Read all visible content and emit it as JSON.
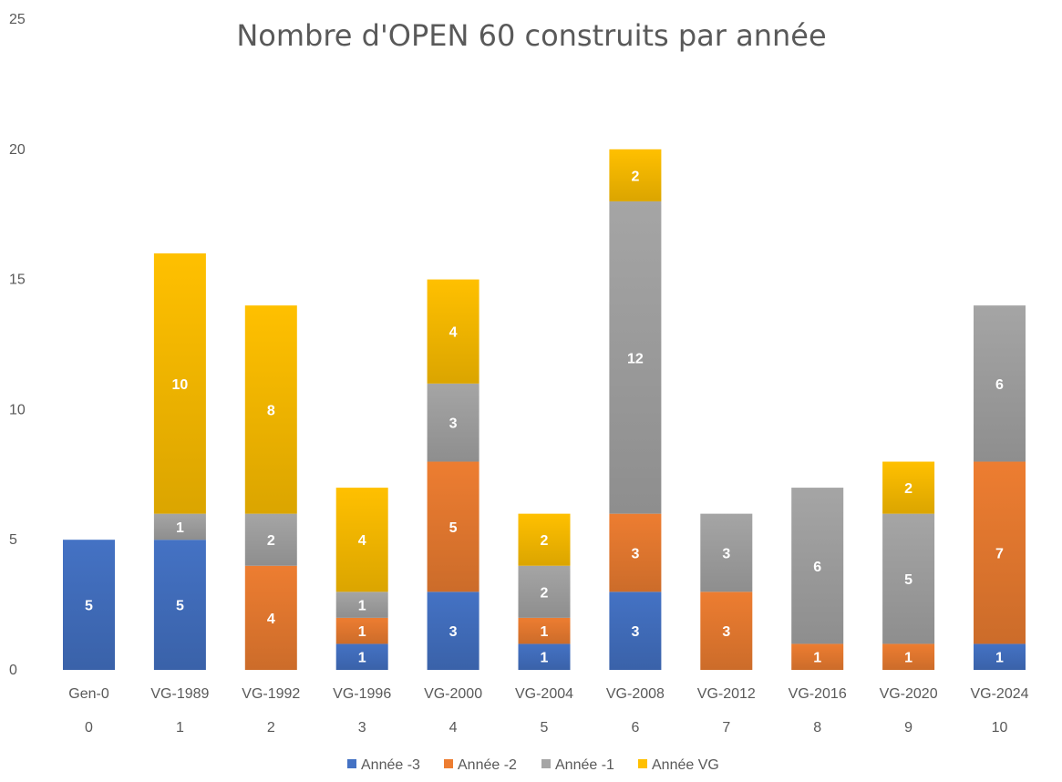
{
  "chart_data": {
    "type": "bar",
    "stacked": true,
    "title": "Nombre d'OPEN 60 construits par année",
    "xlabel": "",
    "ylabel": "",
    "ylim": [
      0,
      25
    ],
    "yticks": [
      "0",
      "5",
      "10",
      "15",
      "20",
      "25"
    ],
    "grid": false,
    "legend_position": "bottom",
    "categories": [
      "Gen-0",
      "VG-1989",
      "VG-1992",
      "VG-1996",
      "VG-2000",
      "VG-2004",
      "VG-2008",
      "VG-2012",
      "VG-2016",
      "VG-2020",
      "VG-2024"
    ],
    "category_index": [
      "0",
      "1",
      "2",
      "3",
      "4",
      "5",
      "6",
      "7",
      "8",
      "9",
      "10"
    ],
    "series": [
      {
        "name": "Année -3",
        "color": "#4472C4",
        "values": [
          5,
          5,
          0,
          1,
          3,
          1,
          3,
          0,
          0,
          0,
          1
        ]
      },
      {
        "name": "Année -2",
        "color": "#ED7D31",
        "values": [
          0,
          0,
          4,
          1,
          5,
          1,
          3,
          3,
          1,
          1,
          7
        ]
      },
      {
        "name": "Année -1",
        "color": "#A5A5A5",
        "values": [
          0,
          1,
          2,
          1,
          3,
          2,
          12,
          3,
          6,
          5,
          6
        ]
      },
      {
        "name": "Année VG",
        "color": "#FFC000",
        "values": [
          0,
          10,
          8,
          4,
          4,
          2,
          2,
          0,
          0,
          2,
          0
        ]
      }
    ]
  }
}
